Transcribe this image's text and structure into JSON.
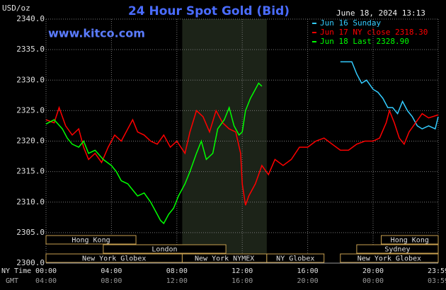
{
  "chart_data": {
    "type": "line",
    "title": "24 Hour Spot Gold (Bid)",
    "subtitle": "June 18, 2024 13:13",
    "y_label": "USD/oz",
    "watermark": "www.kitco.com",
    "x_label": "NY Time",
    "x2_label": "GMT",
    "ylim": [
      2300,
      2340
    ],
    "yticks": [
      {
        "value": 2300,
        "label": "2300.0"
      },
      {
        "value": 2305,
        "label": "2305.0"
      },
      {
        "value": 2310,
        "label": "2310.0"
      },
      {
        "value": 2315,
        "label": "2315.0"
      },
      {
        "value": 2320,
        "label": "2320.0"
      },
      {
        "value": 2325,
        "label": "2325.0"
      },
      {
        "value": 2330,
        "label": "2330.0"
      },
      {
        "value": 2335,
        "label": "2335.0"
      },
      {
        "value": 2340,
        "label": "2340.0"
      }
    ],
    "xlim": [
      0,
      23.983
    ],
    "xticks": [
      {
        "value": 0,
        "label": "00:00"
      },
      {
        "value": 4,
        "label": "04:00"
      },
      {
        "value": 8,
        "label": "08:00"
      },
      {
        "value": 12,
        "label": "12:00"
      },
      {
        "value": 16,
        "label": "16:00"
      },
      {
        "value": 20,
        "label": "20:00"
      },
      {
        "value": 23.983,
        "label": "23:59"
      }
    ],
    "x2ticks": [
      "04:00",
      "08:00",
      "12:00",
      "16:00",
      "20:00",
      "00:00",
      "03:59"
    ],
    "grid": true,
    "shaded_range": [
      8.33,
      13.5
    ],
    "sessions": [
      {
        "label": "Hong Kong",
        "start": 0,
        "end": 5.5,
        "row": 0
      },
      {
        "label": "Hong Kong",
        "start": 20.5,
        "end": 23.983,
        "row": 0
      },
      {
        "label": "London",
        "start": 3.5,
        "end": 11,
        "row": 1
      },
      {
        "label": "Sydney",
        "start": 19,
        "end": 23.983,
        "row": 1
      },
      {
        "label": "New York Globex",
        "start": 0,
        "end": 8.33,
        "row": 2
      },
      {
        "label": "New York NYMEX",
        "start": 8.33,
        "end": 13.5,
        "row": 2
      },
      {
        "label": "NY Globex",
        "start": 13.5,
        "end": 17,
        "row": 2
      },
      {
        "label": "New York Globex",
        "start": 18,
        "end": 23.983,
        "row": 2
      }
    ],
    "series": [
      {
        "name": "Jun 16 Sunday",
        "color": "#33ccff",
        "x": [
          18.0,
          18.7,
          19.0,
          19.3,
          19.6,
          20.0,
          20.3,
          20.6,
          20.9,
          21.2,
          21.5,
          21.8,
          22.1,
          22.4,
          22.7,
          23.0,
          23.4,
          23.8,
          23.983
        ],
        "values": [
          2333,
          2333,
          2331,
          2329.5,
          2330,
          2328.5,
          2328,
          2327,
          2325.5,
          2325.5,
          2324.5,
          2326.5,
          2325,
          2324,
          2322.5,
          2322,
          2322.5,
          2322,
          2324
        ]
      },
      {
        "name": "Jun 17 NY close 2318.30",
        "color": "#ff0000",
        "x": [
          0,
          0.5,
          0.8,
          1.2,
          1.6,
          2.0,
          2.3,
          2.6,
          3.0,
          3.4,
          3.8,
          4.2,
          4.6,
          5.0,
          5.3,
          5.6,
          6.0,
          6.4,
          6.8,
          7.2,
          7.6,
          8.0,
          8.5,
          8.8,
          9.2,
          9.6,
          10.0,
          10.4,
          10.8,
          11.2,
          11.6,
          11.9,
          12.0,
          12.2,
          12.4,
          12.8,
          13.2,
          13.6,
          14.0,
          14.5,
          15.0,
          15.5,
          16.0,
          16.5,
          17.0,
          17.5,
          18.0,
          18.5,
          19.0,
          19.5,
          20.0,
          20.4,
          20.8,
          21.0,
          21.3,
          21.6,
          21.9,
          22.2,
          22.6,
          23.0,
          23.4,
          23.983
        ],
        "values": [
          2323.5,
          2323,
          2325.5,
          2322.5,
          2321,
          2322,
          2319,
          2317,
          2318,
          2316.5,
          2319,
          2321,
          2320,
          2322,
          2323.5,
          2321.5,
          2321,
          2320,
          2319.5,
          2321,
          2319,
          2320,
          2318,
          2321.5,
          2325,
          2324,
          2321.5,
          2325,
          2323,
          2322,
          2321.5,
          2318,
          2313,
          2309.5,
          2311,
          2313,
          2316,
          2314.5,
          2317,
          2316,
          2317,
          2319,
          2319,
          2320,
          2320.5,
          2319.5,
          2318.5,
          2318.5,
          2319.5,
          2320,
          2320,
          2320.5,
          2323,
          2325,
          2323,
          2320.5,
          2319.5,
          2321.5,
          2323,
          2324.5,
          2323.8,
          2324.3
        ]
      },
      {
        "name": "Jun 18 Last 2328.90",
        "color": "#00ff00",
        "x": [
          0,
          0.5,
          1.0,
          1.3,
          1.6,
          2.0,
          2.3,
          2.6,
          3.0,
          3.5,
          4.0,
          4.3,
          4.6,
          5.0,
          5.3,
          5.6,
          6.0,
          6.4,
          6.8,
          7.0,
          7.2,
          7.5,
          7.8,
          8.1,
          8.5,
          8.8,
          9.2,
          9.5,
          9.8,
          10.2,
          10.5,
          10.9,
          11.2,
          11.5,
          11.8,
          12.0,
          12.2,
          12.5,
          12.8,
          13.0,
          13.2
        ],
        "values": [
          2322.8,
          2323.5,
          2322,
          2320.5,
          2319.5,
          2319,
          2320,
          2318,
          2318.5,
          2317,
          2316,
          2315,
          2313.5,
          2313,
          2312,
          2311,
          2311.5,
          2310,
          2308,
          2307,
          2306.5,
          2308,
          2309,
          2311,
          2313,
          2315,
          2318,
          2320,
          2317,
          2318,
          2322,
          2323.5,
          2325.5,
          2322.5,
          2321,
          2321.5,
          2325,
          2327,
          2328.5,
          2329.5,
          2329
        ]
      }
    ]
  }
}
